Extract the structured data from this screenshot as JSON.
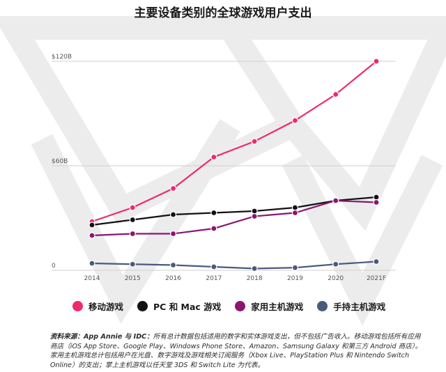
{
  "chart_data": {
    "type": "line",
    "title": "主要设备类别的全球游戏用户支出",
    "categories": [
      "2014",
      "2015",
      "2016",
      "2017",
      "2018",
      "2019",
      "2020",
      "2021F"
    ],
    "y_ticks": [
      "$120B",
      "$60B",
      "0"
    ],
    "ylim": [
      0,
      120
    ],
    "grid": true,
    "legend_position": "bottom",
    "series": [
      {
        "name": "移动游戏",
        "color": "#ee2a6b",
        "values": [
          28,
          36,
          47,
          65,
          74,
          86,
          101,
          120
        ]
      },
      {
        "name": "PC 和 Mac 游戏",
        "color": "#111111",
        "values": [
          26,
          29,
          32,
          33,
          34,
          36,
          40,
          42
        ]
      },
      {
        "name": "家用主机游戏",
        "color": "#8a1672",
        "values": [
          20,
          21,
          21,
          24,
          31,
          33,
          40,
          39
        ]
      },
      {
        "name": "手持主机游戏",
        "color": "#4a5a7c",
        "values": [
          4,
          3.5,
          3,
          2,
          1,
          1.5,
          3.5,
          5
        ]
      }
    ]
  },
  "footnote": {
    "source_label": "资料来源：App Annie 与 IDC：",
    "text": "所有总计数据包括适用的数字和实体游戏支出，但不包括广告收入。移动游戏包括所有应用商店（iOS App Store、Google Play、Windows Phone Store、Amazon、Samsung Galaxy 和第三方 Android 商店）。家用主机游戏总计包括用户在光盘、数字游戏及游戏相关订阅服务（Xbox Live、PlayStation Plus 和 Nintendo Switch Online）的支出；掌上主机游戏以任天堂 3DS 和 Switch Lite 为代表。"
  }
}
